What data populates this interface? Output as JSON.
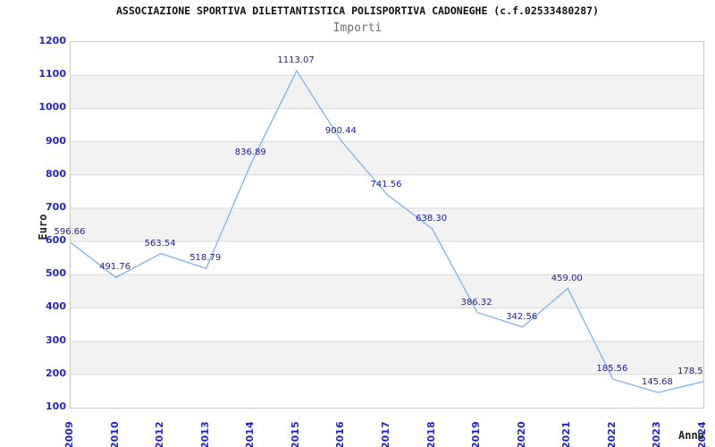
{
  "header": {
    "title": "ASSOCIAZIONE SPORTIVA DILETTANTISTICA POLISPORTIVA CADONEGHE (c.f.02533480287)",
    "subtitle": "Importi"
  },
  "chart_data": {
    "type": "line",
    "title": "ASSOCIAZIONE SPORTIVA DILETTANTISTICA POLISPORTIVA CADONEGHE (c.f.02533480287)",
    "subtitle": "Importi",
    "categories": [
      "2009",
      "2010",
      "2012",
      "2013",
      "2014",
      "2015",
      "2016",
      "2017",
      "2018",
      "2019",
      "2020",
      "2021",
      "2022",
      "2023",
      "2024"
    ],
    "values": [
      596.66,
      491.76,
      563.54,
      518.79,
      836.89,
      1113.07,
      900.44,
      741.56,
      638.3,
      386.32,
      342.56,
      459.0,
      185.56,
      145.68,
      178.5
    ],
    "point_labels": [
      "596.66",
      "491.76",
      "563.54",
      "518.79",
      "836.89",
      "1113.07",
      "900.44",
      "741.56",
      "638.30",
      "386.32",
      "342.56",
      "459.00",
      "185.56",
      "145.68",
      "178.5"
    ],
    "xlabel": "Anno",
    "ylabel": "Euro",
    "ylim": [
      100,
      1200
    ],
    "yticks": [
      100,
      200,
      300,
      400,
      500,
      600,
      700,
      800,
      900,
      1000,
      1100,
      1200
    ],
    "grid": "horizontal lines with alternating shaded bands",
    "legend": "none",
    "colors": {
      "line": "#7fb2e6",
      "point_label": "#1f1f8f",
      "tick_label": "#2424ce",
      "axis_title": "#222222",
      "band": "#f2f2f2",
      "gridline": "#dadada",
      "plot_border": "#c8c8c8",
      "title": "#111111",
      "subtitle": "#707070"
    }
  }
}
